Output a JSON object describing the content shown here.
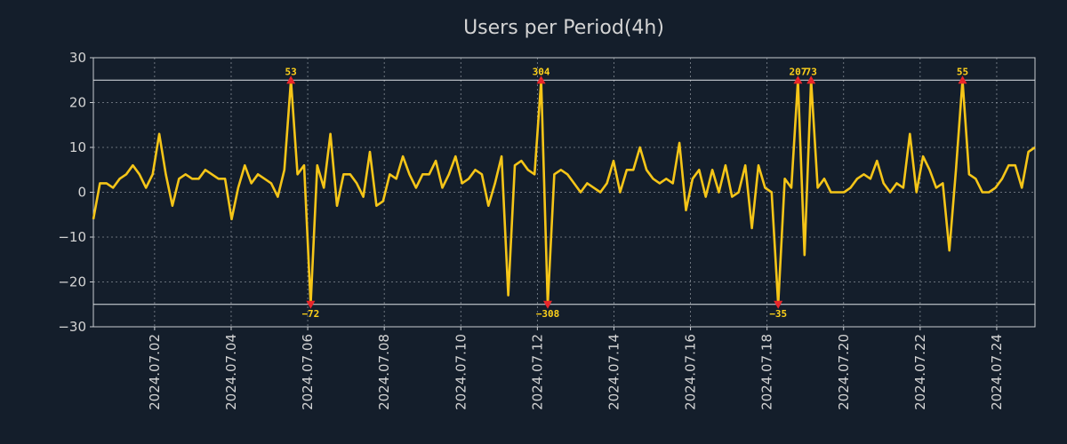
{
  "chart_data": {
    "type": "line",
    "title": "Users per Period(4h)",
    "xlabel": "",
    "ylabel": "",
    "ylim": [
      -30,
      30
    ],
    "xlim": [
      0.4,
      25.0
    ],
    "y_ticks": [
      30,
      20,
      10,
      0,
      -10,
      -20,
      -30
    ],
    "y_tick_labels": [
      "30",
      "20",
      "10",
      "0",
      "−10",
      "−20",
      "−30"
    ],
    "x_ticks": [
      2,
      4,
      6,
      8,
      10,
      12,
      14,
      16,
      18,
      20,
      22,
      24
    ],
    "x_tick_labels": [
      "2024.07.02",
      "2024.07.04",
      "2024.07.06",
      "2024.07.08",
      "2024.07.10",
      "2024.07.12",
      "2024.07.14",
      "2024.07.16",
      "2024.07.18",
      "2024.07.20",
      "2024.07.22",
      "2024.07.24"
    ],
    "clip_lines": [
      25,
      -25
    ],
    "series": [
      {
        "name": "Users",
        "color": "#f5c518",
        "values": [
          -6,
          2,
          2,
          1,
          3,
          4,
          6,
          4,
          1,
          4,
          13,
          4,
          -3,
          3,
          4,
          3,
          3,
          5,
          4,
          3,
          3,
          -6,
          1,
          6,
          2,
          4,
          3,
          2,
          -1,
          5,
          25,
          4,
          6,
          -25,
          6,
          1,
          13,
          -3,
          4,
          4,
          2,
          -1,
          9,
          -3,
          -2,
          4,
          3,
          8,
          4,
          1,
          4,
          4,
          7,
          1,
          4,
          8,
          2,
          3,
          5,
          4,
          -3,
          2,
          8,
          -23,
          6,
          7,
          5,
          4,
          25,
          -25,
          4,
          5,
          4,
          2,
          0,
          2,
          1,
          0,
          2,
          7,
          0,
          5,
          5,
          10,
          5,
          3,
          2,
          3,
          2,
          11,
          -4,
          3,
          5,
          -1,
          5,
          0,
          6,
          -1,
          0,
          6,
          -8,
          6,
          1,
          0,
          -25,
          3,
          1,
          25,
          -14,
          25,
          1,
          3,
          0,
          0,
          0,
          1,
          3,
          4,
          3,
          7,
          2,
          0,
          2,
          1,
          13,
          0,
          8,
          5,
          1,
          2,
          -13,
          5,
          25,
          4,
          3,
          0,
          0,
          1,
          3,
          6,
          6,
          1,
          9,
          10
        ]
      }
    ],
    "annotations": [
      {
        "index": 30,
        "label": "53",
        "direction": "up"
      },
      {
        "index": 68,
        "label": "304",
        "direction": "up"
      },
      {
        "index": 107,
        "label": "207",
        "direction": "up"
      },
      {
        "index": 109,
        "label": "73",
        "direction": "up"
      },
      {
        "index": 132,
        "label": "55",
        "direction": "up"
      },
      {
        "index": 33,
        "label": "−72",
        "direction": "down"
      },
      {
        "index": 69,
        "label": "−308",
        "direction": "down"
      },
      {
        "index": 104,
        "label": "−35",
        "direction": "down"
      }
    ]
  }
}
